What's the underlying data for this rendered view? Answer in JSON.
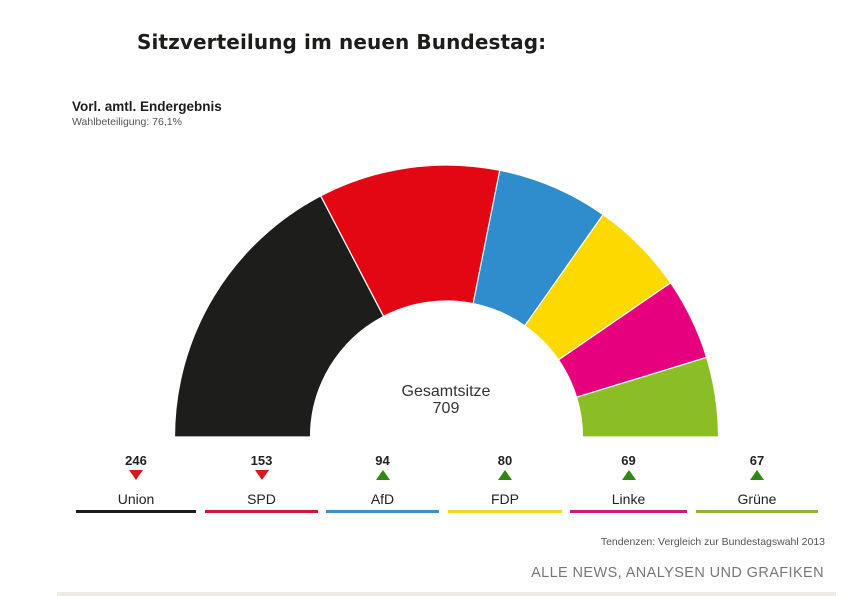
{
  "title": "Sitzverteilung im neuen Bundestag:",
  "subtitle": "Vorl. amtl. Endergebnis",
  "turnout": "Wahlbeteiligung: 76,1%",
  "center_label": {
    "caption": "Gesamtsitze",
    "value": "709"
  },
  "footnote": "Tendenzen: Vergleich zur Bundestagswahl 2013",
  "more_link": "ALLE NEWS, ANALYSEN UND GRAFIKEN",
  "chart_data": {
    "type": "pie",
    "variant": "half-donut (parliament)",
    "title": "Sitzverteilung im neuen Bundestag:",
    "subtitle": "Vorl. amtl. Endergebnis",
    "total": 709,
    "categories": [
      "Union",
      "SPD",
      "AfD",
      "FDP",
      "Linke",
      "Grüne"
    ],
    "values": [
      246,
      153,
      94,
      80,
      69,
      67
    ],
    "colors": [
      "#1d1d1b",
      "#e30613",
      "#2f8dcd",
      "#fdd900",
      "#e6007e",
      "#8bbd24"
    ],
    "trends": [
      "down",
      "down",
      "up",
      "up",
      "up",
      "up"
    ],
    "trend_colors": {
      "down": "#d7191c",
      "up": "#2d8a10"
    },
    "trend_note": "Tendenzen: Vergleich zur Bundestagswahl 2013",
    "legend_position": "bottom"
  },
  "legend": [
    {
      "name": "Union",
      "seats": "246",
      "trend": "down",
      "color": "#1d1d1b"
    },
    {
      "name": "SPD",
      "seats": "153",
      "trend": "down",
      "color": "#d0172b"
    },
    {
      "name": "AfD",
      "seats": "94",
      "trend": "up",
      "color": "#3d8fc6"
    },
    {
      "name": "FDP",
      "seats": "80",
      "trend": "up",
      "color": "#f2d71f"
    },
    {
      "name": "Linke",
      "seats": "69",
      "trend": "up",
      "color": "#cf1a7c"
    },
    {
      "name": "Grüne",
      "seats": "67",
      "trend": "up",
      "color": "#8bb535"
    }
  ]
}
